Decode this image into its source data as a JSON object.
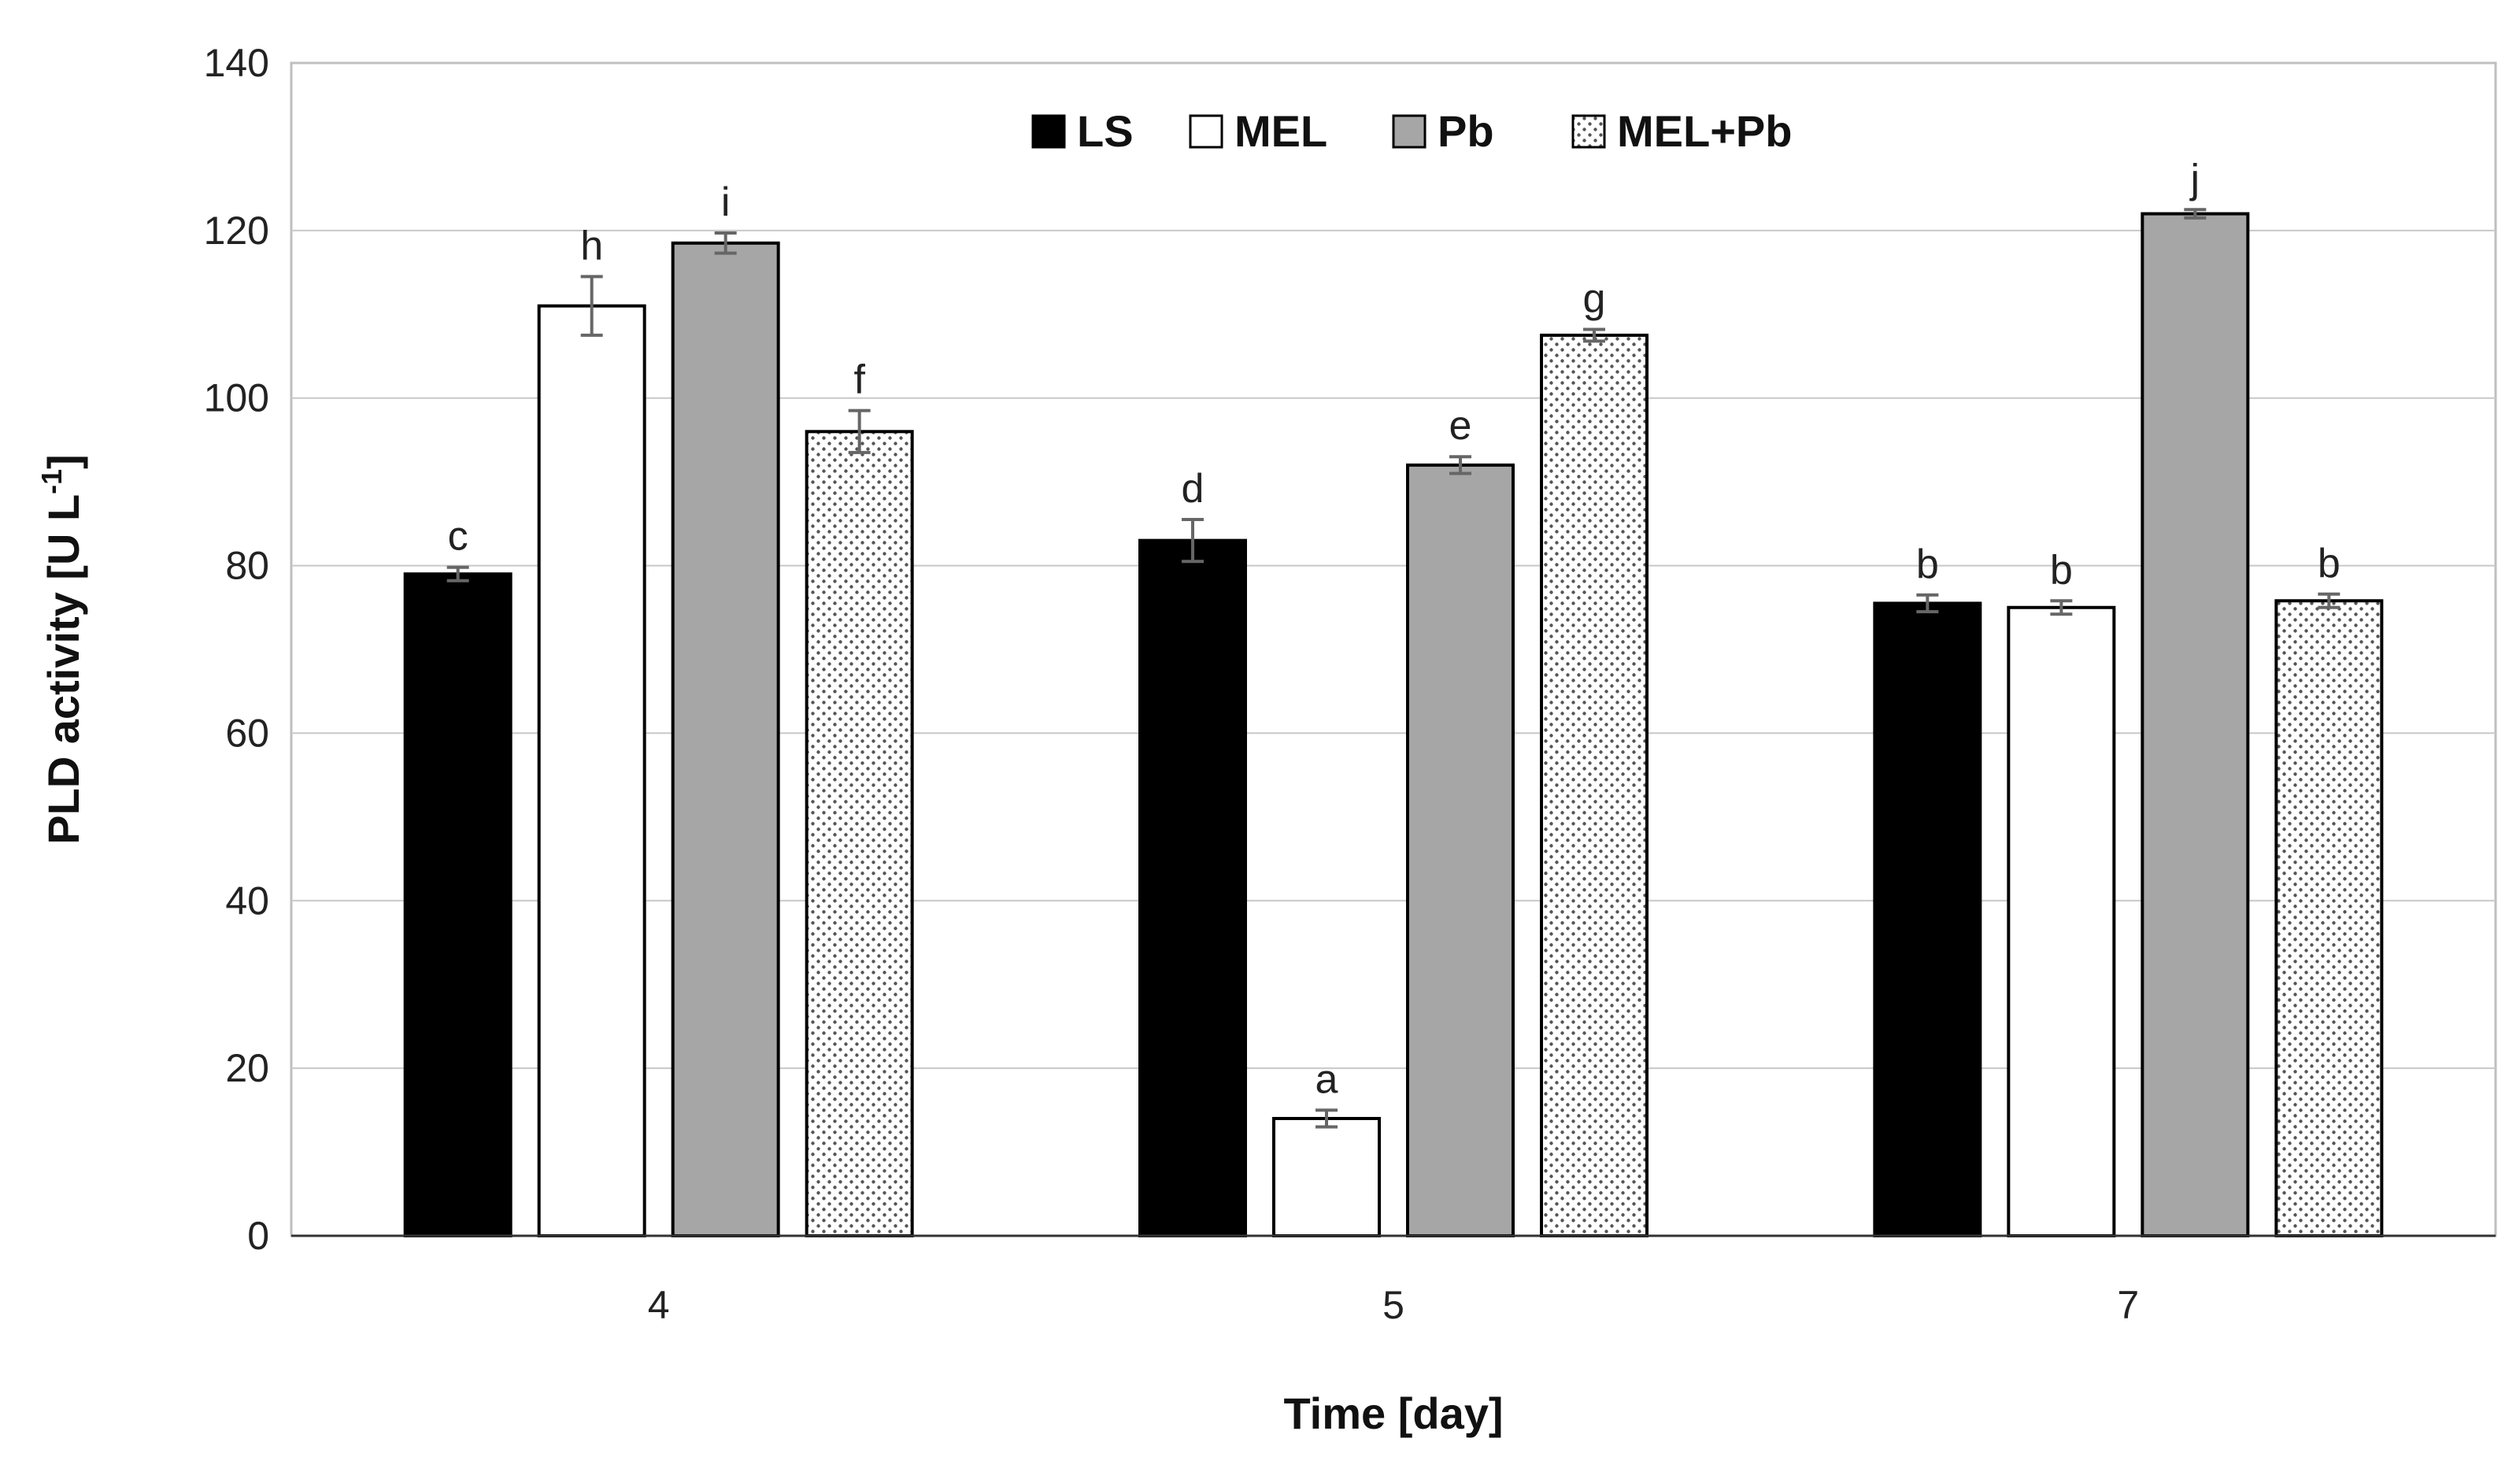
{
  "chart_data": {
    "type": "bar",
    "title": "",
    "xlabel": "Time [day]",
    "ylabel": "PLD activity [U L",
    "ylabel_superscript": "-1",
    "ylabel_close": "]",
    "ylim": [
      0,
      140
    ],
    "yticks": [
      0,
      20,
      40,
      60,
      80,
      100,
      120,
      140
    ],
    "grid": true,
    "legend_position": "top-center",
    "categories": [
      "4",
      "5",
      "7"
    ],
    "series": [
      {
        "name": "LS",
        "color": "#000000",
        "pattern": "solid",
        "values": [
          79,
          83,
          75.5
        ],
        "errors": [
          0.8,
          2.5,
          1.0
        ],
        "letters": [
          "c",
          "d",
          "b"
        ]
      },
      {
        "name": "MEL",
        "color": "#ffffff",
        "pattern": "solid",
        "values": [
          111,
          14,
          75
        ],
        "errors": [
          3.5,
          1.0,
          0.8
        ],
        "letters": [
          "h",
          "a",
          "b"
        ]
      },
      {
        "name": "Pb",
        "color": "#a6a6a6",
        "pattern": "solid",
        "values": [
          118.5,
          92,
          122
        ],
        "errors": [
          1.2,
          1.0,
          0.5
        ],
        "letters": [
          "i",
          "e",
          "j"
        ]
      },
      {
        "name": "MEL+Pb",
        "color": "#ffffff",
        "pattern": "dotted",
        "values": [
          96,
          107.5,
          75.8
        ],
        "errors": [
          2.5,
          0.7,
          0.8
        ],
        "letters": [
          "f",
          "g",
          "b"
        ]
      }
    ]
  }
}
